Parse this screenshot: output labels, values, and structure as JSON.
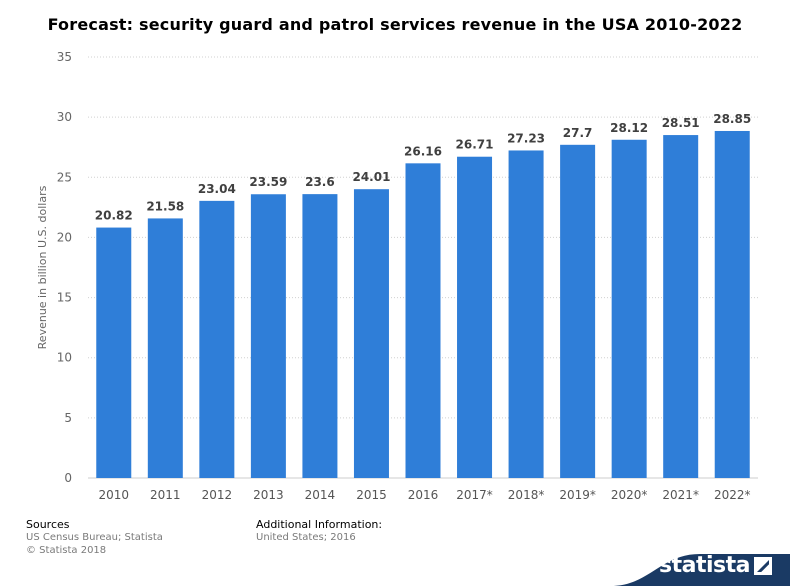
{
  "chart_data": {
    "type": "bar",
    "title": "Forecast: security guard and patrol services revenue in the USA 2010-2022",
    "xlabel": "",
    "ylabel": "Revenue in billion U.S. dollars",
    "categories": [
      "2010",
      "2011",
      "2012",
      "2013",
      "2014",
      "2015",
      "2016",
      "2017*",
      "2018*",
      "2019*",
      "2020*",
      "2021*",
      "2022*"
    ],
    "values": [
      20.82,
      21.58,
      23.04,
      23.59,
      23.6,
      24.01,
      26.16,
      26.71,
      27.23,
      27.7,
      28.12,
      28.51,
      28.85
    ],
    "value_labels": [
      "20.82",
      "21.58",
      "23.04",
      "23.59",
      "23.6",
      "24.01",
      "26.16",
      "26.71",
      "27.23",
      "27.7",
      "28.12",
      "28.51",
      "28.85"
    ],
    "ylim": [
      0,
      35
    ],
    "yticks": [
      0,
      5,
      10,
      15,
      20,
      25,
      30,
      35
    ],
    "ytick_labels": [
      "0",
      "5",
      "10",
      "15",
      "20",
      "25",
      "30",
      "35"
    ],
    "grid": true,
    "bar_color": "#2f7ed8"
  },
  "footer": {
    "sources_heading": "Sources",
    "sources_line1": "US Census Bureau; Statista",
    "sources_line2": "© Statista 2018",
    "additional_heading": "Additional Information:",
    "additional_text": "United States; 2016"
  },
  "brand": {
    "name": "statista",
    "icon": "statista-logo-icon",
    "color": "#1a3a64"
  }
}
